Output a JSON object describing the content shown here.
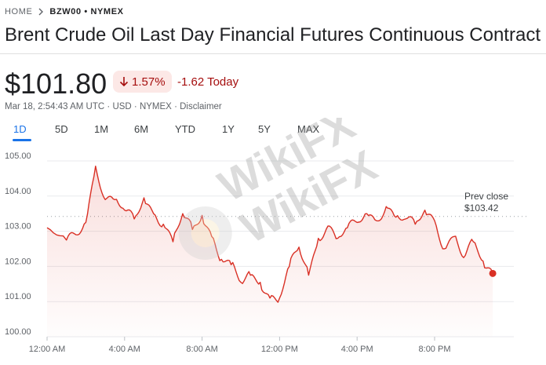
{
  "breadcrumb": {
    "home": "HOME",
    "ticker": "BZW00 • NYMEX"
  },
  "title": "Brent Crude Oil Last Day Financial Futures Continuous Contract",
  "quote": {
    "price": "$101.80",
    "change_pct": "1.57%",
    "change_today": "-1.62 Today"
  },
  "meta": {
    "timestamp": "Mar 18, 2:54:43 AM UTC",
    "currency": "USD",
    "exchange": "NYMEX",
    "disclaimer": "Disclaimer"
  },
  "tabs": [
    {
      "label": "1D",
      "active": true
    },
    {
      "label": "5D",
      "active": false
    },
    {
      "label": "1M",
      "active": false
    },
    {
      "label": "6M",
      "active": false
    },
    {
      "label": "YTD",
      "active": false
    },
    {
      "label": "1Y",
      "active": false
    },
    {
      "label": "5Y",
      "active": false
    },
    {
      "label": "MAX",
      "active": false
    }
  ],
  "colors": {
    "negative": "#a50e0e",
    "line": "#d93025",
    "accent": "#1a73e8"
  },
  "chart_data": {
    "type": "line",
    "ylim": [
      100,
      105
    ],
    "y_ticks": [
      "105.00",
      "104.00",
      "103.00",
      "102.00",
      "101.00",
      "100.00"
    ],
    "x_ticks": [
      "12:00 AM",
      "4:00 AM",
      "8:00 AM",
      "12:00 PM",
      "4:00 PM",
      "8:00 PM"
    ],
    "x_hours": [
      0,
      1,
      1.5,
      2,
      2.5,
      3,
      3.5,
      4,
      4.5,
      5,
      5.5,
      6,
      6.5,
      7,
      7.5,
      8,
      8.5,
      9,
      9.5,
      10,
      10.5,
      11,
      11.5,
      12,
      12.5,
      13,
      13.5,
      14,
      14.5,
      15,
      15.5,
      16,
      16.5,
      17,
      17.5,
      18,
      18.5,
      19,
      19.5,
      20,
      20.5,
      21,
      21.5,
      22,
      22.5,
      23
    ],
    "values": [
      103.1,
      102.75,
      102.9,
      103.25,
      104.85,
      103.9,
      103.9,
      103.6,
      103.35,
      103.95,
      103.5,
      103.2,
      102.7,
      103.5,
      103.05,
      103.45,
      102.85,
      102.2,
      102.05,
      101.55,
      101.75,
      101.55,
      101.1,
      101.1,
      102.0,
      102.55,
      101.75,
      102.8,
      103.15,
      102.8,
      103.1,
      103.25,
      103.5,
      103.3,
      103.7,
      103.4,
      103.35,
      103.2,
      103.6,
      103.3,
      102.5,
      102.85,
      102.25,
      102.7,
      102.15,
      101.8
    ],
    "prev_close": 103.42,
    "prev_close_label": "Prev close",
    "prev_close_value": "$103.42"
  },
  "watermark": "WikiFX"
}
